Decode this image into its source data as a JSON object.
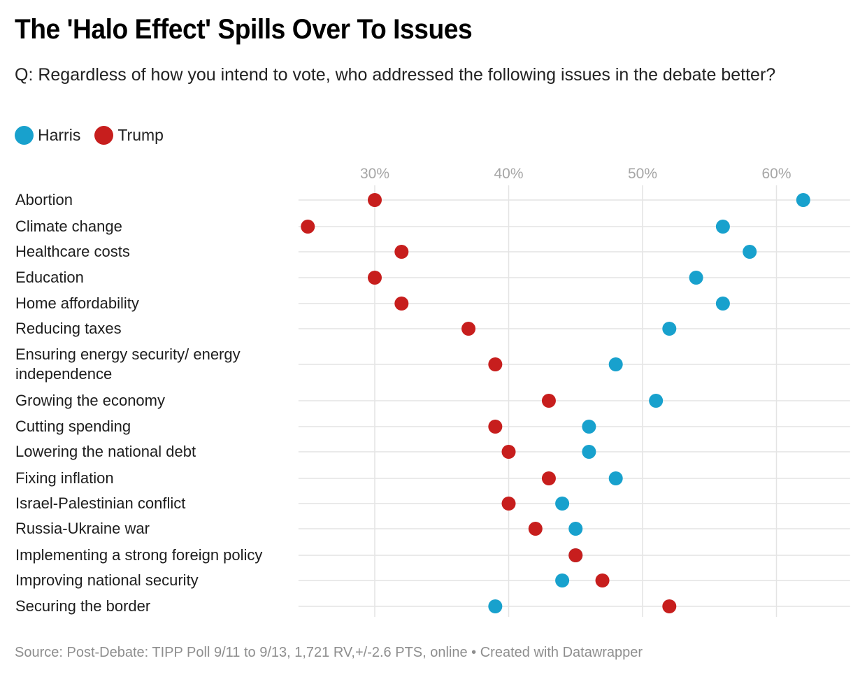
{
  "chart_data": {
    "type": "scatter",
    "subtype": "dot-plot",
    "title": "The 'Halo Effect' Spills Over To Issues",
    "subtitle": "Q: Regardless of how you intend to vote, who addressed the following issues in the debate better?",
    "xlabel": "",
    "ylabel": "",
    "xlim": [
      24.3,
      65.5
    ],
    "x_ticks": [
      30,
      40,
      50,
      60
    ],
    "x_tick_labels": [
      "30%",
      "40%",
      "50%",
      "60%"
    ],
    "grid": true,
    "legend_position": "top-left",
    "categories": [
      "Abortion",
      "Climate change",
      "Healthcare costs",
      "Education",
      "Home affordability",
      "Reducing taxes",
      "Ensuring energy security/ energy independence",
      "Growing the economy",
      "Cutting spending",
      "Lowering the national debt",
      "Fixing inflation",
      "Israel-Palestinian conflict",
      "Russia-Ukraine war",
      "Implementing a strong foreign policy",
      "Improving national security",
      "Securing the border"
    ],
    "series": [
      {
        "name": "Harris",
        "color": "#18a1cd",
        "values": [
          62,
          56,
          58,
          54,
          56,
          52,
          48,
          51,
          46,
          46,
          48,
          44,
          45,
          45,
          44,
          39
        ]
      },
      {
        "name": "Trump",
        "color": "#c71e1d",
        "values": [
          30,
          25,
          32,
          30,
          32,
          37,
          39,
          43,
          39,
          40,
          43,
          40,
          42,
          45,
          47,
          52
        ]
      }
    ],
    "source": "Source: Post-Debate: TIPP Poll 9/11 to 9/13, 1,721 RV,+/-2.6 PTS, online • Created with Datawrapper"
  },
  "labels": {
    "rows": [
      [
        "Abortion"
      ],
      [
        "Climate change"
      ],
      [
        "Healthcare costs"
      ],
      [
        "Education"
      ],
      [
        "Home affordability"
      ],
      [
        "Reducing taxes"
      ],
      [
        "Ensuring energy security/ energy",
        "independence"
      ],
      [
        "Growing the economy"
      ],
      [
        "Cutting spending"
      ],
      [
        "Lowering the national debt"
      ],
      [
        "Fixing inflation"
      ],
      [
        "Israel-Palestinian conflict"
      ],
      [
        "Russia-Ukraine war"
      ],
      [
        "Implementing a strong foreign policy"
      ],
      [
        "Improving national security"
      ],
      [
        "Securing the border"
      ]
    ]
  },
  "legend": {
    "harris": "Harris",
    "trump": "Trump"
  }
}
